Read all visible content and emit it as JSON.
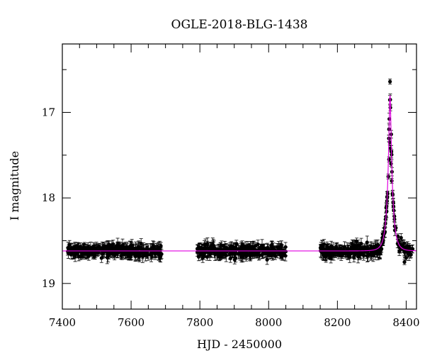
{
  "chart_data": {
    "type": "scatter",
    "title": "OGLE-2018-BLG-1438",
    "xlabel": "HJD - 2450000",
    "ylabel": "I magnitude",
    "xlim": [
      7400,
      8430
    ],
    "ylim": [
      19.3,
      16.2
    ],
    "y_inverted": true,
    "x_ticks": [
      7400,
      7600,
      7800,
      8000,
      8200,
      8400
    ],
    "y_ticks": [
      17,
      18,
      19
    ],
    "grid": false,
    "colors": {
      "points": "#000000",
      "model": "#e000e0",
      "axes": "#000000"
    },
    "model": {
      "type": "microlensing-fit",
      "baseline_mag": 18.62,
      "peak_hjd": 8353,
      "peak_mag": 16.8
    },
    "observing_seasons": [
      {
        "x_range": [
          7415,
          7690
        ],
        "mean_mag": 18.62,
        "points": 300
      },
      {
        "x_range": [
          7790,
          8050
        ],
        "mean_mag": 18.62,
        "points": 260
      },
      {
        "x_range": [
          8150,
          8330
        ],
        "mean_mag": 18.62,
        "points": 200
      },
      {
        "x_range": [
          8330,
          8420
        ],
        "mean_mag": 18.55,
        "points": 70
      }
    ],
    "peak_points": [
      {
        "x": 8353,
        "y": 16.64
      },
      {
        "x": 8352,
        "y": 17.35
      },
      {
        "x": 8354,
        "y": 17.42
      },
      {
        "x": 8350,
        "y": 17.55
      },
      {
        "x": 8356,
        "y": 17.6
      },
      {
        "x": 8348,
        "y": 17.75
      },
      {
        "x": 8358,
        "y": 17.8
      },
      {
        "x": 8346,
        "y": 17.95
      },
      {
        "x": 8360,
        "y": 17.95
      },
      {
        "x": 8343,
        "y": 18.1
      },
      {
        "x": 8363,
        "y": 18.1
      },
      {
        "x": 8340,
        "y": 18.25
      },
      {
        "x": 8366,
        "y": 18.25
      },
      {
        "x": 8337,
        "y": 18.35
      },
      {
        "x": 8370,
        "y": 18.35
      },
      {
        "x": 8332,
        "y": 18.42
      },
      {
        "x": 8376,
        "y": 18.45
      },
      {
        "x": 8395,
        "y": 18.75
      },
      {
        "x": 8400,
        "y": 18.7
      }
    ]
  }
}
